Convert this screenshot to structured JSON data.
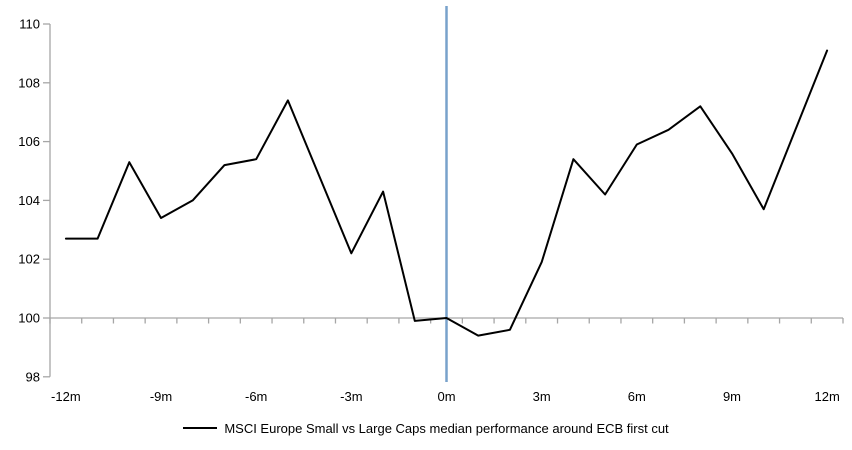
{
  "chart_data": {
    "type": "line",
    "title": "",
    "xlabel": "",
    "ylabel": "",
    "x_unit": "months relative to ECB first cut",
    "x": [
      -12,
      -11,
      -10,
      -9,
      -8,
      -7,
      -6,
      -5,
      -4,
      -3,
      -2,
      -1,
      0,
      1,
      2,
      3,
      4,
      5,
      6,
      7,
      8,
      9,
      10,
      11,
      12
    ],
    "series": [
      {
        "name": "MSCI Europe Small vs Large Caps median performance around ECB first cut",
        "color": "#000000",
        "values": [
          102.7,
          102.7,
          105.3,
          103.4,
          104.0,
          105.2,
          105.4,
          107.4,
          104.8,
          102.2,
          104.3,
          99.9,
          100.0,
          99.4,
          99.6,
          101.9,
          105.4,
          104.2,
          105.9,
          106.4,
          107.2,
          105.6,
          103.7,
          106.4,
          109.1
        ]
      }
    ],
    "ylim": [
      98,
      110
    ],
    "y_ticks": [
      98,
      100,
      102,
      104,
      106,
      108,
      110
    ],
    "y_tick_labels": [
      "98",
      "100",
      "102",
      "104",
      "106",
      "108",
      "110"
    ],
    "x_label_months": [
      -12,
      -9,
      -6,
      -3,
      0,
      3,
      6,
      9,
      12
    ],
    "x_tick_labels": [
      "-12m",
      "-9m",
      "-6m",
      "-3m",
      "0m",
      "3m",
      "6m",
      "9m",
      "12m"
    ],
    "baseline_value": 100,
    "event_line": {
      "x": 0,
      "color": "#78A2CB"
    },
    "grid": "off",
    "axis_color": "#a6a6a6",
    "legend_position": "bottom-center"
  },
  "legend": {
    "label": "MSCI Europe Small vs Large Caps median performance around ECB first cut"
  }
}
